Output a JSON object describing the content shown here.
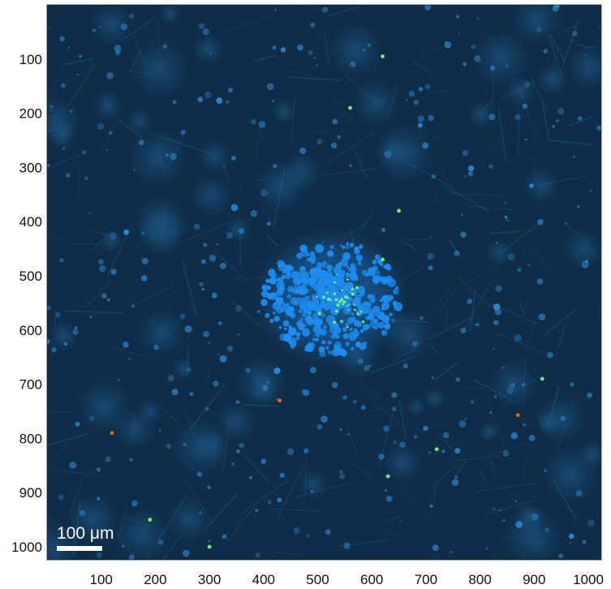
{
  "image": {
    "description_colors": {
      "background": "#0e2c47",
      "tissue": "#1d5a8c",
      "bright_cells": "#2a8fe0",
      "cluster": "#1e8cf0",
      "highlight_green": "#7dff7a",
      "highlight_orange": "#ff6a1a"
    }
  },
  "axes": {
    "x_ticks": [
      "100",
      "200",
      "300",
      "400",
      "500",
      "600",
      "700",
      "800",
      "900",
      "1000"
    ],
    "y_ticks": [
      "100",
      "200",
      "300",
      "400",
      "500",
      "600",
      "700",
      "800",
      "900",
      "1000"
    ],
    "xlim": [
      0,
      1024
    ],
    "ylim": [
      0,
      1024
    ],
    "y_direction": "reversed",
    "grid": false
  },
  "scale_bar": {
    "label": "100 μm"
  }
}
